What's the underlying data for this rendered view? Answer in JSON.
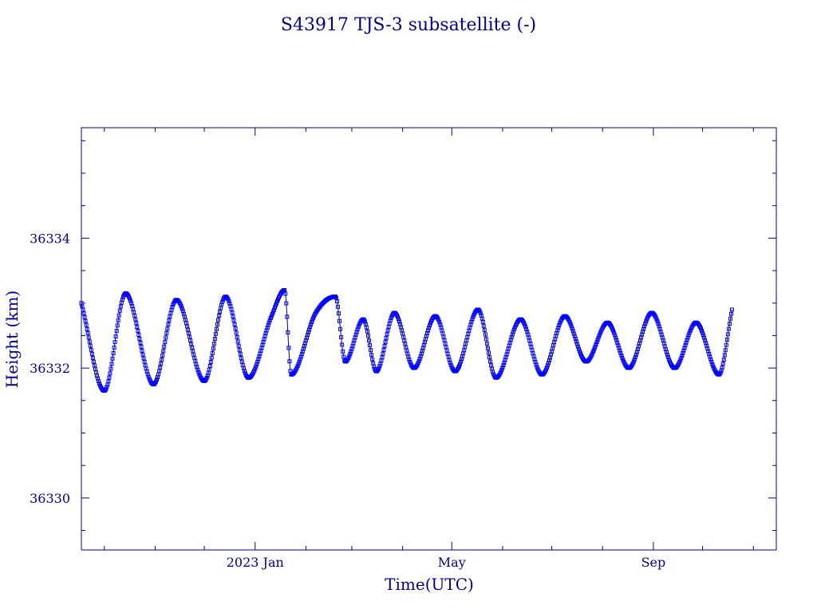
{
  "chart_data": {
    "type": "line",
    "title": "S43917 TJS-3 subsatellite  (-)",
    "xlabel": "Time(UTC)",
    "ylabel": "Height (km)",
    "x_range": [
      "2022-09-17",
      "2023-11-15"
    ],
    "ylim": [
      36329.2,
      36335.7
    ],
    "x_ticks": [
      {
        "date": "2023-01-01",
        "label": "2023 Jan"
      },
      {
        "date": "2023-05-01",
        "label": "May"
      },
      {
        "date": "2023-09-01",
        "label": "Sep"
      }
    ],
    "x_minor_ticks": [
      "2022-10-01",
      "2022-11-01",
      "2022-12-01",
      "2023-02-01",
      "2023-03-01",
      "2023-04-01",
      "2023-06-01",
      "2023-07-01",
      "2023-08-01",
      "2023-10-01",
      "2023-11-01"
    ],
    "y_ticks": [
      36330,
      36332,
      36334
    ],
    "y_minor_step": 0.5,
    "colors": {
      "axis": "#00008b",
      "marker": "#0000ff",
      "line": "#000080"
    },
    "markers": "open-square",
    "series": [
      {
        "x": [
          "2022-09-17",
          "2022-10-01",
          "2022-10-14",
          "2022-10-31",
          "2022-11-14",
          "2022-12-01",
          "2022-12-14",
          "2022-12-28",
          "2023-01-11",
          "2023-01-19",
          "2023-01-23",
          "2023-02-07",
          "2023-02-19",
          "2023-02-25",
          "2023-03-08",
          "2023-03-16",
          "2023-03-27",
          "2023-04-08",
          "2023-04-21",
          "2023-05-03",
          "2023-05-17",
          "2023-05-28",
          "2023-06-12",
          "2023-06-25",
          "2023-07-09",
          "2023-07-22",
          "2023-08-04",
          "2023-08-17",
          "2023-08-31",
          "2023-09-14",
          "2023-09-27",
          "2023-10-11",
          "2023-10-19"
        ],
        "y": [
          36333.0,
          36331.65,
          36333.15,
          36331.75,
          36333.05,
          36331.8,
          36333.1,
          36331.85,
          36332.8,
          36333.2,
          36331.9,
          36332.85,
          36333.1,
          36332.1,
          36332.75,
          36331.95,
          36332.85,
          36332.0,
          36332.8,
          36331.95,
          36332.9,
          36331.85,
          36332.75,
          36331.9,
          36332.8,
          36332.1,
          36332.7,
          36332.0,
          36332.85,
          36332.0,
          36332.7,
          36331.9,
          36332.9
        ]
      }
    ]
  }
}
